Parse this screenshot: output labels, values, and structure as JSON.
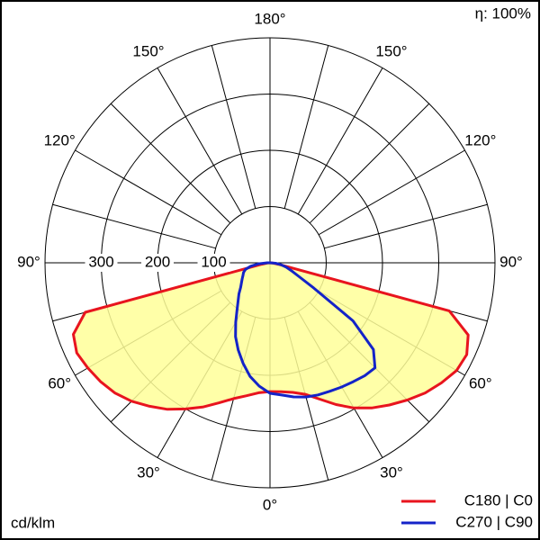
{
  "chart_data": {
    "type": "polar",
    "efficiency_label": "η: 100%",
    "unit_label": "cd/klm",
    "rlim": [
      0,
      400
    ],
    "rticks": [
      100,
      200,
      300
    ],
    "angle_ticks": [
      {
        "value": 0,
        "label": "0°"
      },
      {
        "value": 30,
        "label": "30°"
      },
      {
        "value": -30,
        "label": "30°"
      },
      {
        "value": 60,
        "label": "60°"
      },
      {
        "value": -60,
        "label": "60°"
      },
      {
        "value": 90,
        "label": "90°"
      },
      {
        "value": -90,
        "label": "90°"
      },
      {
        "value": 120,
        "label": "120°"
      },
      {
        "value": -120,
        "label": "120°"
      },
      {
        "value": 150,
        "label": "150°"
      },
      {
        "value": -150,
        "label": "150°"
      },
      {
        "value": 180,
        "label": "180°"
      }
    ],
    "angles": [
      -90,
      -85,
      -80,
      -75,
      -70,
      -65,
      -60,
      -55,
      -50,
      -45,
      -40,
      -35,
      -30,
      -25,
      -20,
      -15,
      -10,
      -5,
      0,
      5,
      10,
      15,
      20,
      25,
      30,
      35,
      40,
      45,
      50,
      55,
      60,
      65,
      70,
      75,
      80,
      85,
      90
    ],
    "series": [
      {
        "name": "C180 | C0",
        "color": "#e8141e",
        "fill": "#ffff99",
        "values": [
          0,
          5,
          15,
          340,
          372,
          379,
          374,
          368,
          360,
          348,
          333,
          318,
          300,
          283,
          265,
          250,
          240,
          232,
          229,
          230,
          234,
          242,
          258,
          278,
          298,
          315,
          330,
          345,
          360,
          372,
          383,
          386,
          375,
          330,
          15,
          5,
          0
        ]
      },
      {
        "name": "C270 | C90",
        "color": "#1423c8",
        "values": [
          5,
          20,
          35,
          45,
          50,
          53,
          57,
          62,
          68,
          78,
          88,
          102,
          122,
          145,
          165,
          185,
          205,
          220,
          232,
          236,
          242,
          247,
          250,
          252,
          255,
          258,
          262,
          264,
          240,
          180,
          90,
          55,
          40,
          30,
          20,
          10,
          0
        ]
      }
    ]
  }
}
